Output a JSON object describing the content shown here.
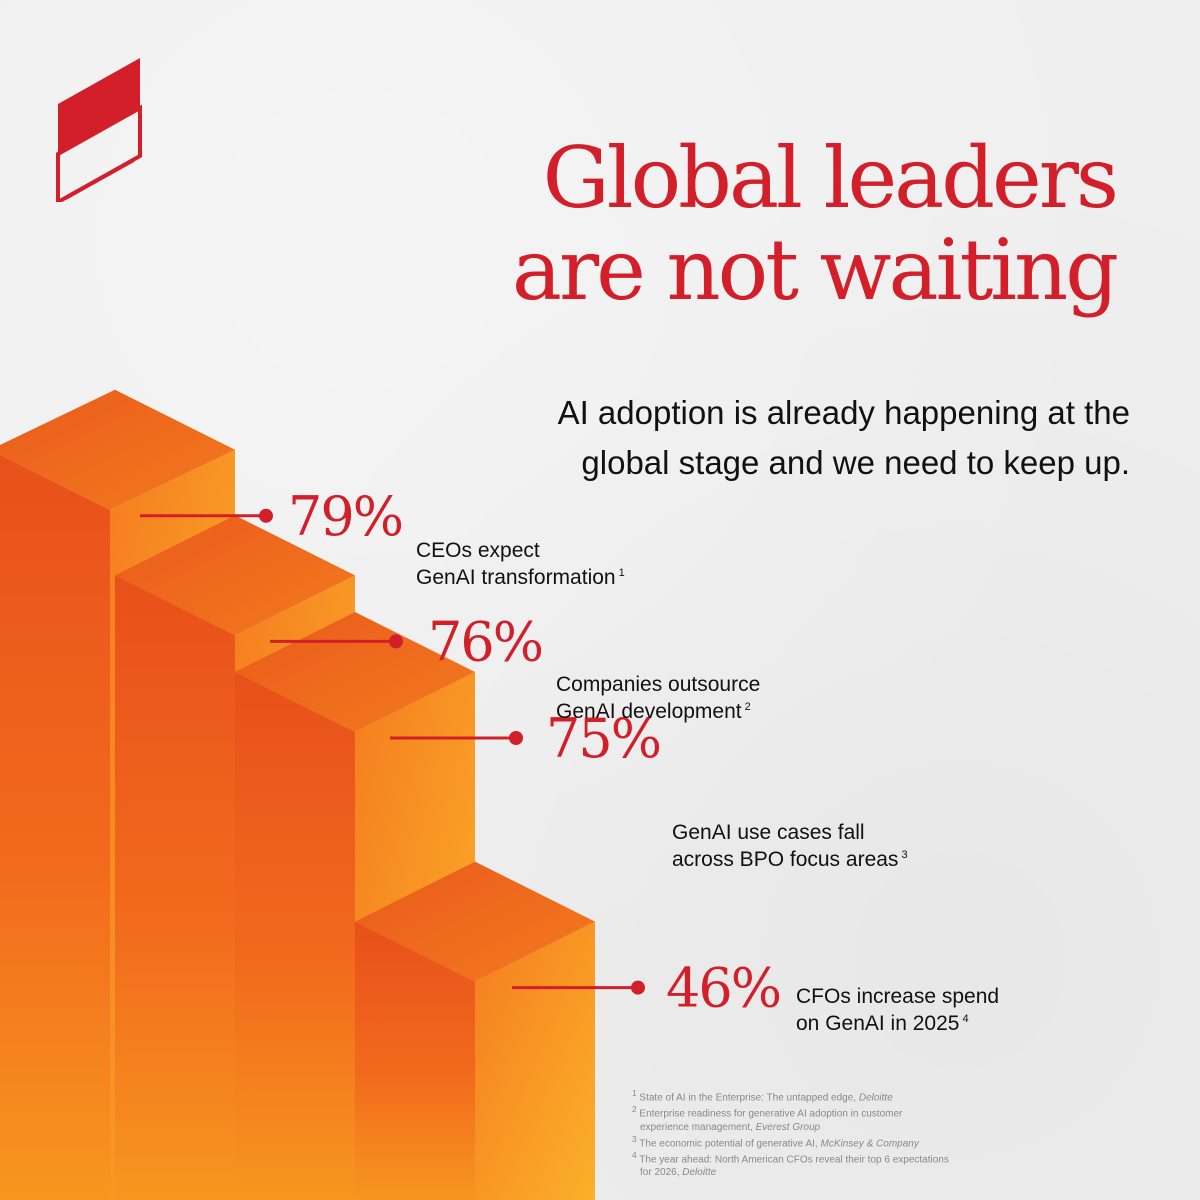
{
  "brand": {
    "accent": "#d21f2a",
    "logo_icon": "brand-logo-icon"
  },
  "title": {
    "line1": "Global leaders",
    "line2": "are not waiting"
  },
  "subtitle": {
    "line1": "AI adoption is already happening at the",
    "line2": "global stage and we need to keep up."
  },
  "chart_data": {
    "type": "bar",
    "categories": [
      "CEOs expect GenAI transformation",
      "Companies outsource GenAI development",
      "GenAI use cases fall across BPO focus areas",
      "CFOs increase spend on GenAI in 2025"
    ],
    "values": [
      79,
      76,
      75,
      46
    ],
    "value_labels": [
      "79%",
      "76%",
      "75%",
      "46%"
    ],
    "unit": "%",
    "bar_colors": [
      "#ee5a1c",
      "#f47a1e",
      "#f9a325"
    ],
    "items": [
      {
        "value": "79%",
        "line1": "CEOs expect",
        "line2": "GenAI transformation",
        "ref": "1"
      },
      {
        "value": "76%",
        "line1": "Companies outsource",
        "line2": "GenAI development",
        "ref": "2"
      },
      {
        "value": "75%",
        "line1": "GenAI use cases fall",
        "line2": "across BPO focus areas",
        "ref": "3"
      },
      {
        "value": "46%",
        "line1": "CFOs increase spend",
        "line2": "on GenAI in 2025",
        "ref": "4"
      }
    ]
  },
  "references": {
    "r1": {
      "num": "1",
      "text": "State of AI in the Enterprise: The untapped edge,",
      "source": "Deloitte"
    },
    "r2": {
      "num": "2",
      "text": "Enterprise readiness for generative AI adoption in customer",
      "text2": "experience management,",
      "source": "Everest Group"
    },
    "r3": {
      "num": "3",
      "text": "The economic potential of generative AI,",
      "source": "McKinsey & Company"
    },
    "r4": {
      "num": "4",
      "text": "The year ahead: North American CFOs reveal their top 6 expectations",
      "text2": "for 2026,",
      "source": "Deloitte"
    }
  }
}
